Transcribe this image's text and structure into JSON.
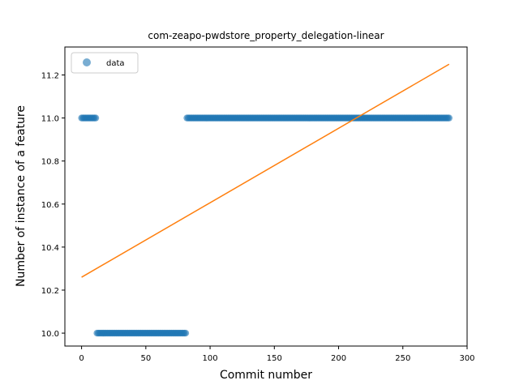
{
  "chart_data": {
    "type": "scatter",
    "title": "com-zeapo-pwdstore_property_delegation-linear",
    "xlabel": "Commit number",
    "ylabel": "Number of instance of a feature",
    "xlim": [
      -13,
      300
    ],
    "ylim": [
      9.94,
      11.33
    ],
    "xticks": [
      0,
      50,
      100,
      150,
      200,
      250,
      300
    ],
    "yticks": [
      10.0,
      10.2,
      10.4,
      10.6,
      10.8,
      11.0,
      11.2
    ],
    "legend": {
      "position": "upper left",
      "entries": [
        "data"
      ]
    },
    "colors": {
      "data": "#1f77b4",
      "fit": "#ff7f0e"
    },
    "series": [
      {
        "name": "data",
        "kind": "scatter",
        "segments": [
          {
            "x_start": 0,
            "x_end": 11,
            "y": 11.0
          },
          {
            "x_start": 12,
            "x_end": 81,
            "y": 10.0
          },
          {
            "x_start": 82,
            "x_end": 286,
            "y": 11.0
          }
        ]
      },
      {
        "kind": "line",
        "x": [
          0,
          286
        ],
        "y": [
          10.26,
          11.25
        ]
      }
    ]
  }
}
